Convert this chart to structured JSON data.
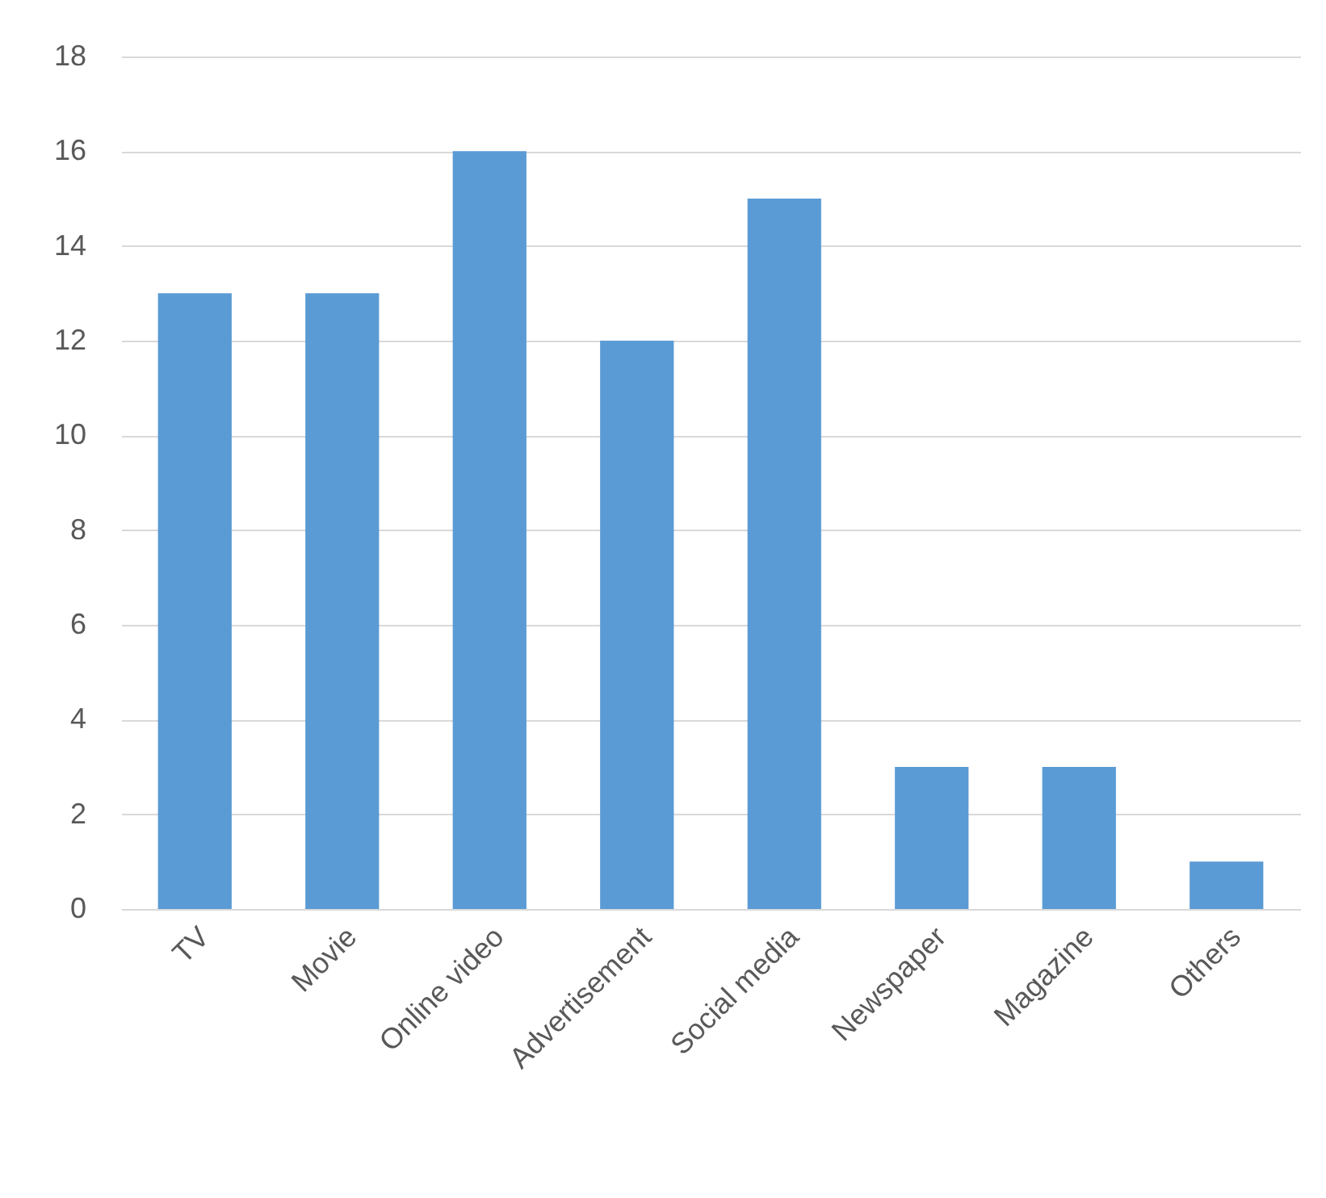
{
  "chart_data": {
    "type": "bar",
    "categories": [
      "TV",
      "Movie",
      "Online video",
      "Advertisement",
      "Social media",
      "Newspaper",
      "Magazine",
      "Others"
    ],
    "values": [
      13,
      13,
      16,
      12,
      15,
      3,
      3,
      1
    ],
    "color": "#5b9bd5",
    "ylim": [
      0,
      18
    ],
    "yticks": [
      0,
      2,
      4,
      6,
      8,
      10,
      12,
      14,
      16,
      18
    ],
    "grid": "y"
  }
}
